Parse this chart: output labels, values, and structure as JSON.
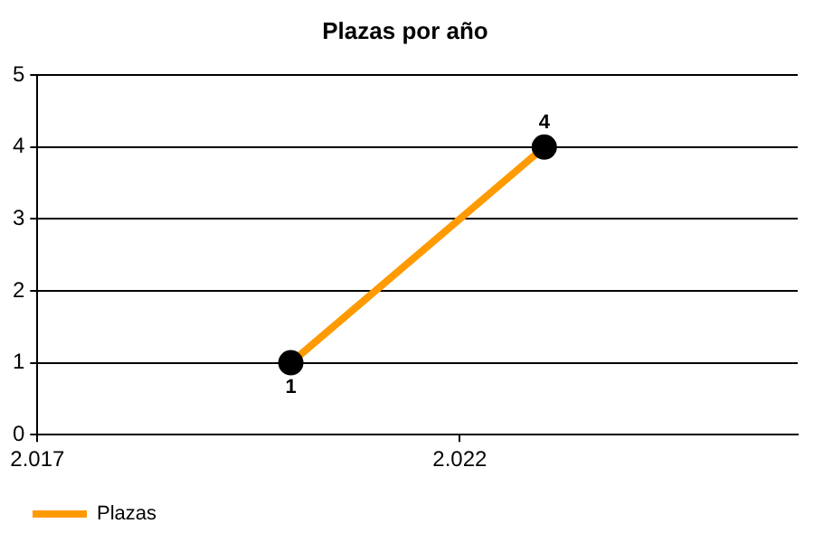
{
  "chart_data": {
    "type": "line",
    "title": "Plazas por año",
    "x": [
      2020,
      2023
    ],
    "series": [
      {
        "name": "Plazas",
        "color": "#ff9a00",
        "values": [
          1,
          4
        ]
      }
    ],
    "xlim": [
      2017,
      2026
    ],
    "xticks": [
      {
        "value": 2017,
        "label": "2.017"
      },
      {
        "value": 2022,
        "label": "2.022"
      }
    ],
    "ylim": [
      0,
      5
    ],
    "yticks": [
      0,
      1,
      2,
      3,
      4,
      5
    ],
    "grid": "y",
    "legend": "bottom left",
    "marker": "circle",
    "data_labels": true
  }
}
